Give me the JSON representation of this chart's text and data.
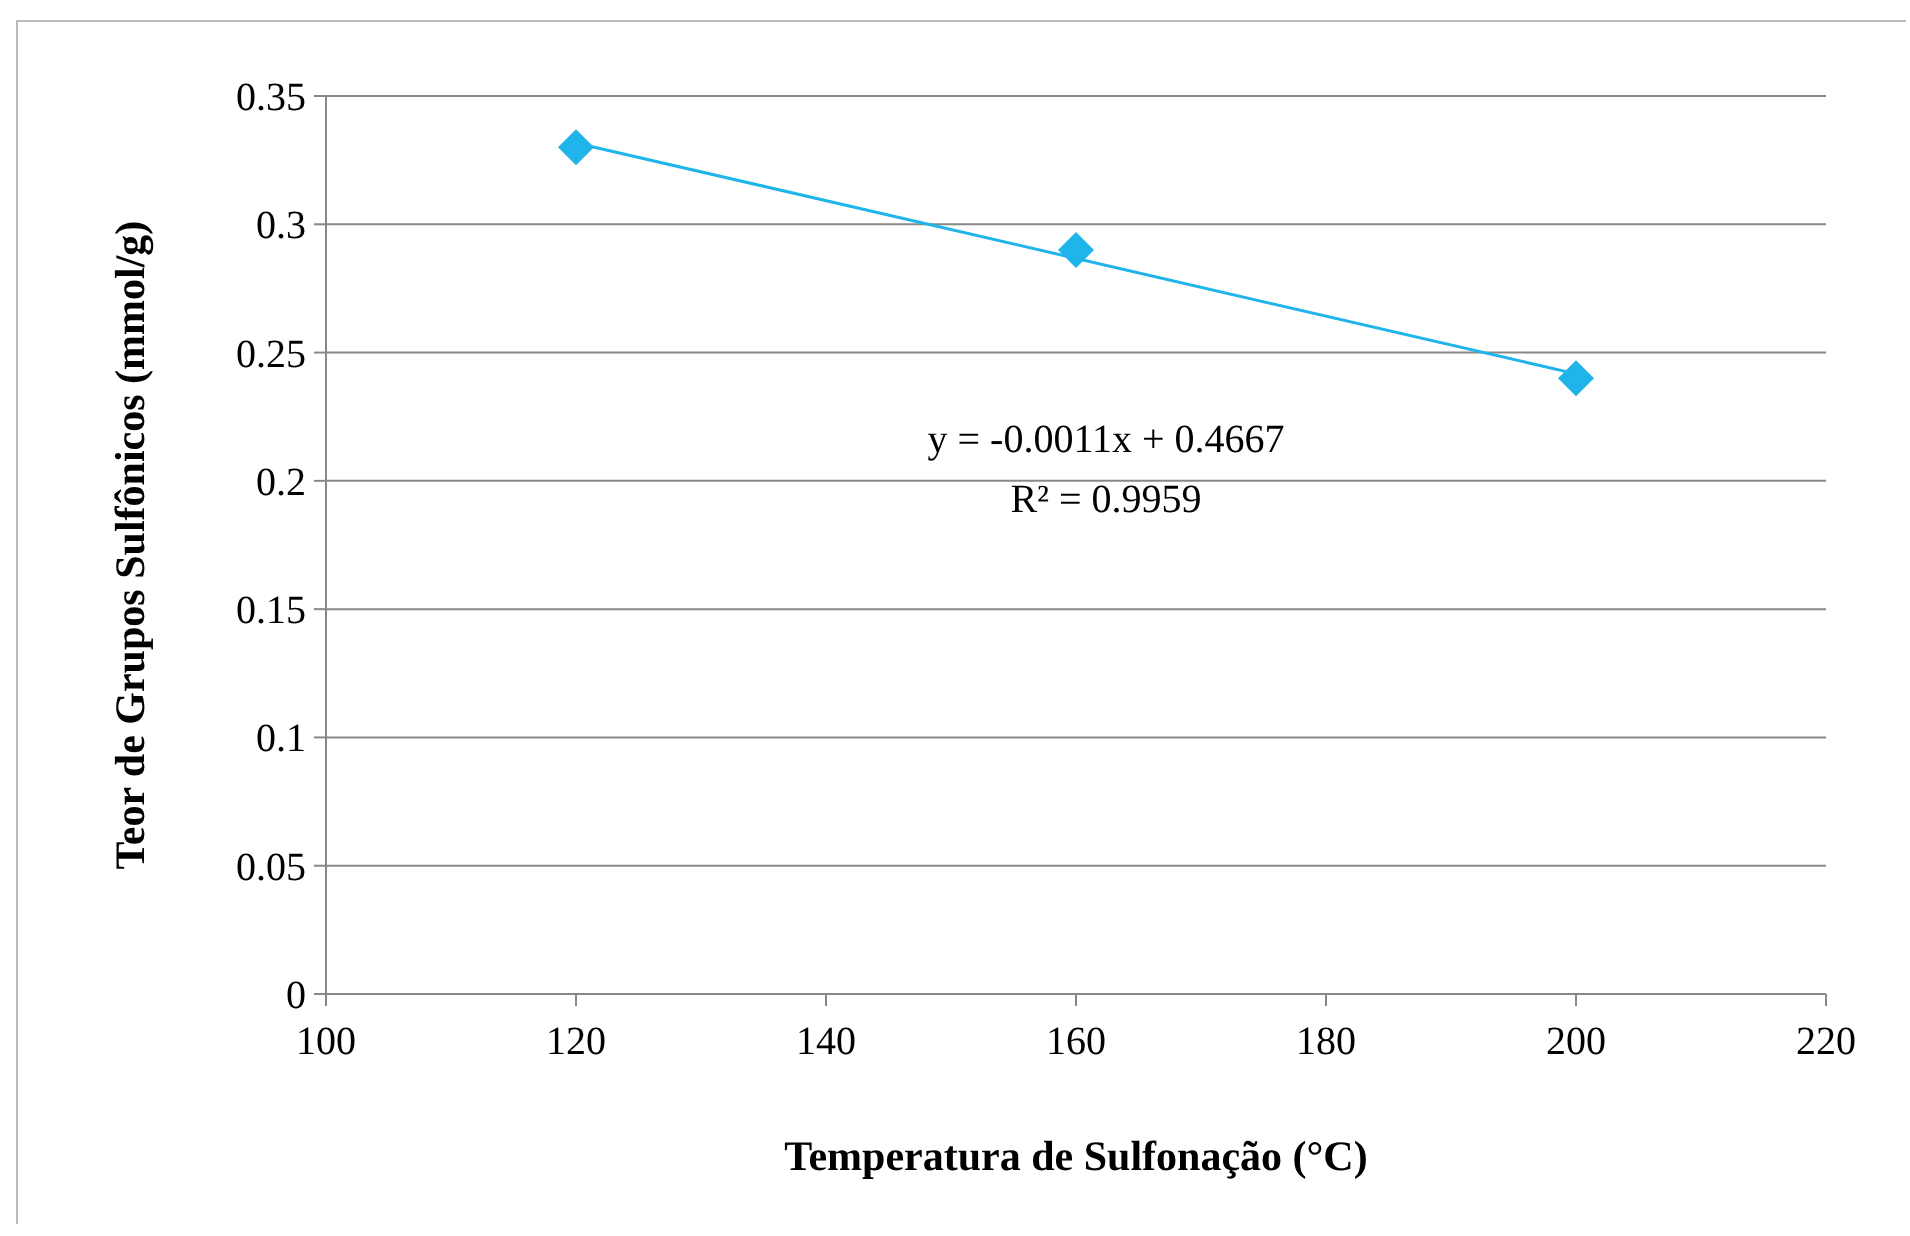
{
  "chart_data": {
    "type": "scatter",
    "xlabel": "Temperatura de Sulfonação (°C)",
    "ylabel": "Teor de Grupos Sulfônicos (mmol/g)",
    "xlim": [
      100,
      220
    ],
    "xticks": [
      100,
      120,
      140,
      160,
      180,
      200,
      220
    ],
    "ylim": [
      0,
      0.35
    ],
    "yticks": [
      0,
      0.05,
      0.1,
      0.15,
      0.2,
      0.25,
      0.3,
      0.35
    ],
    "grid": "y",
    "series": [
      {
        "color": "#1fb4ea",
        "x": [
          120,
          160,
          200
        ],
        "values": [
          0.33,
          0.29,
          0.24
        ],
        "marker": "diamond"
      },
      {
        "type": "line",
        "color": "#1fb4ea",
        "x": [
          120,
          200
        ],
        "values": [
          0.3317,
          0.2417
        ],
        "marker": "none",
        "line_style": "solid"
      }
    ],
    "annotations": [
      "y = -0.0011x + 0.4667",
      "R² = 0.9959"
    ]
  }
}
